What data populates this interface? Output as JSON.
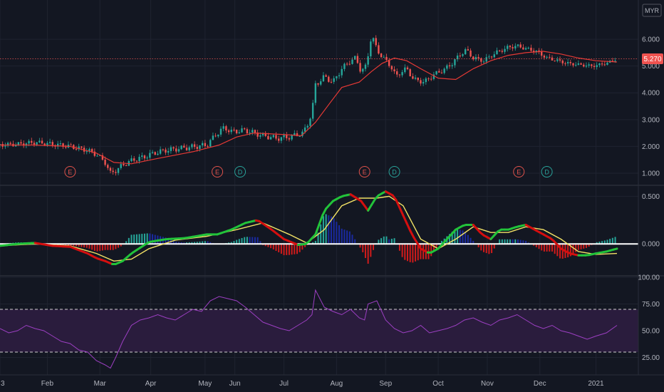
{
  "chart_data": {
    "type": "candlestick",
    "currency": "MYR",
    "last_price_label": "5.270",
    "colors": {
      "background": "#131722",
      "grid": "#1f2330",
      "up": "#26a69a",
      "down": "#ef5350",
      "moving_average": "#e53935",
      "macd_line_up": "#22c33a",
      "macd_line_down": "#d50f0f",
      "signal_line": "#f2e266",
      "hist_pos_strong": "#26a69a",
      "hist_pos_weak": "#1a2aa0",
      "hist_neg": "#d11b1b",
      "rsi_line": "#9c3fc2",
      "rsi_band": "#2a1c3d",
      "event_e": "#e0524b",
      "event_d": "#29a39a"
    },
    "x_labels": [
      "3",
      "Feb",
      "Mar",
      "Apr",
      "May",
      "Jun",
      "Jul",
      "Aug",
      "Sep",
      "Oct",
      "Nov",
      "Dec",
      "2021"
    ],
    "x_label_positions": [
      0,
      27,
      57,
      86,
      117,
      134,
      162,
      192,
      220,
      250,
      278,
      308,
      340
    ],
    "price_panel": {
      "y_ticks": [
        "1.000",
        "2.000",
        "3.000",
        "4.000",
        "5.000",
        "6.000"
      ],
      "y_tick_values": [
        1,
        2,
        3,
        4,
        5,
        6
      ],
      "ylim": [
        0.6,
        7.2
      ],
      "last_price": 5.27,
      "series": [
        {
          "name": "price",
          "x": [
            0,
            10,
            20,
            30,
            40,
            50,
            55,
            60,
            63,
            66,
            70,
            76,
            82,
            88,
            94,
            100,
            106,
            112,
            118,
            124,
            128,
            132,
            140,
            150,
            158,
            165,
            173,
            176,
            178,
            180,
            185,
            190,
            195,
            200,
            203,
            206,
            209,
            212,
            215,
            220,
            223,
            226,
            229,
            232,
            236,
            242,
            248,
            253,
            258,
            262,
            266,
            270,
            276,
            283,
            290,
            295,
            300,
            306,
            312,
            318,
            324,
            330,
            338,
            346,
            352
          ],
          "y": [
            2.05,
            2.08,
            2.15,
            2.08,
            2.0,
            1.85,
            1.7,
            1.4,
            1.0,
            1.1,
            1.3,
            1.5,
            1.6,
            1.75,
            1.85,
            1.9,
            1.95,
            2.0,
            2.05,
            2.5,
            2.7,
            2.55,
            2.6,
            2.4,
            2.3,
            2.35,
            2.5,
            2.9,
            3.3,
            4.3,
            4.6,
            4.4,
            4.9,
            5.2,
            5.3,
            4.8,
            5.0,
            6.2,
            5.6,
            5.2,
            5.0,
            4.6,
            4.8,
            4.9,
            4.5,
            4.4,
            4.7,
            4.85,
            5.1,
            5.4,
            5.6,
            5.3,
            5.2,
            5.5,
            5.7,
            5.75,
            5.65,
            5.55,
            5.3,
            5.2,
            5.1,
            5.05,
            5.0,
            5.1,
            5.27
          ]
        },
        {
          "name": "moving-average",
          "x": [
            0,
            20,
            40,
            55,
            65,
            75,
            90,
            110,
            125,
            135,
            145,
            160,
            172,
            180,
            188,
            195,
            205,
            212,
            218,
            225,
            232,
            240,
            250,
            260,
            270,
            280,
            290,
            300,
            310,
            320,
            330,
            340,
            352
          ],
          "y": [
            2.05,
            2.05,
            2.0,
            1.75,
            1.4,
            1.35,
            1.55,
            1.8,
            2.05,
            2.35,
            2.5,
            2.45,
            2.4,
            2.9,
            3.6,
            4.2,
            4.4,
            4.8,
            5.1,
            5.3,
            5.2,
            4.9,
            4.55,
            4.5,
            4.9,
            5.2,
            5.4,
            5.5,
            5.55,
            5.45,
            5.3,
            5.2,
            5.15
          ]
        }
      ],
      "events": [
        {
          "label": "E",
          "x": 40
        },
        {
          "label": "E",
          "x": 124
        },
        {
          "label": "D",
          "x": 137
        },
        {
          "label": "E",
          "x": 208
        },
        {
          "label": "D",
          "x": 225
        },
        {
          "label": "E",
          "x": 296
        },
        {
          "label": "D",
          "x": 312
        }
      ]
    },
    "macd_panel": {
      "y_ticks": [
        "0.000",
        "0.500"
      ],
      "y_tick_values": [
        0,
        0.5
      ],
      "ylim": [
        -0.32,
        0.6
      ],
      "macd": {
        "x": [
          0,
          10,
          20,
          30,
          40,
          50,
          55,
          60,
          65,
          70,
          75,
          85,
          95,
          105,
          112,
          118,
          124,
          132,
          140,
          147,
          155,
          162,
          170,
          175,
          180,
          185,
          190,
          195,
          200,
          206,
          210,
          215,
          220,
          225,
          230,
          235,
          240,
          245,
          250,
          255,
          260,
          265,
          270,
          275,
          280,
          285,
          290,
          295,
          300,
          305,
          310,
          315,
          320,
          325,
          330,
          335,
          340,
          346,
          352
        ],
        "y": [
          -0.02,
          0.0,
          0.01,
          -0.02,
          -0.03,
          -0.1,
          -0.15,
          -0.18,
          -0.22,
          -0.18,
          -0.1,
          0.02,
          0.05,
          0.06,
          0.08,
          0.1,
          0.1,
          0.15,
          0.22,
          0.25,
          0.15,
          0.05,
          -0.01,
          0.0,
          0.1,
          0.35,
          0.45,
          0.5,
          0.52,
          0.45,
          0.35,
          0.5,
          0.55,
          0.5,
          0.3,
          0.1,
          -0.05,
          -0.1,
          -0.05,
          0.05,
          0.15,
          0.2,
          0.2,
          0.1,
          0.05,
          0.15,
          0.15,
          0.18,
          0.2,
          0.15,
          0.1,
          0.05,
          -0.05,
          -0.1,
          -0.12,
          -0.12,
          -0.1,
          -0.08,
          -0.05
        ]
      },
      "signal": {
        "x": [
          0,
          20,
          40,
          55,
          65,
          75,
          85,
          100,
          118,
          135,
          150,
          165,
          175,
          185,
          195,
          205,
          215,
          222,
          230,
          240,
          250,
          260,
          270,
          280,
          290,
          300,
          310,
          320,
          330,
          340,
          352
        ],
        "y": [
          -0.02,
          0.0,
          -0.02,
          -0.1,
          -0.18,
          -0.16,
          -0.05,
          0.04,
          0.08,
          0.15,
          0.22,
          0.1,
          0.01,
          0.15,
          0.4,
          0.48,
          0.48,
          0.5,
          0.4,
          0.05,
          -0.05,
          0.05,
          0.18,
          0.12,
          0.12,
          0.18,
          0.15,
          0.05,
          -0.08,
          -0.11,
          -0.1
        ]
      }
    },
    "rsi_panel": {
      "y_ticks": [
        "25.00",
        "50.00",
        "75.00",
        "100.00"
      ],
      "y_tick_values": [
        25,
        50,
        75,
        100
      ],
      "ylim": [
        10,
        100
      ],
      "upper_band": 70,
      "lower_band": 30,
      "rsi": {
        "x": [
          0,
          5,
          10,
          15,
          20,
          25,
          30,
          35,
          40,
          45,
          50,
          55,
          60,
          63,
          66,
          70,
          75,
          80,
          85,
          90,
          95,
          100,
          105,
          110,
          115,
          120,
          125,
          130,
          135,
          140,
          145,
          150,
          155,
          160,
          165,
          170,
          175,
          178,
          180,
          185,
          190,
          195,
          200,
          205,
          208,
          210,
          215,
          220,
          225,
          230,
          235,
          240,
          245,
          250,
          255,
          260,
          265,
          270,
          275,
          280,
          285,
          290,
          295,
          300,
          305,
          310,
          315,
          320,
          325,
          330,
          335,
          340,
          346,
          352
        ],
        "y": [
          52,
          48,
          50,
          55,
          52,
          50,
          45,
          40,
          38,
          32,
          30,
          22,
          18,
          15,
          25,
          40,
          55,
          60,
          62,
          65,
          62,
          60,
          65,
          70,
          68,
          78,
          82,
          80,
          78,
          72,
          65,
          58,
          55,
          52,
          50,
          55,
          60,
          65,
          88,
          72,
          68,
          65,
          70,
          62,
          60,
          75,
          78,
          60,
          52,
          48,
          50,
          55,
          48,
          50,
          52,
          55,
          60,
          62,
          58,
          55,
          60,
          62,
          65,
          60,
          55,
          52,
          55,
          50,
          48,
          45,
          42,
          45,
          48,
          55
        ]
      }
    }
  }
}
